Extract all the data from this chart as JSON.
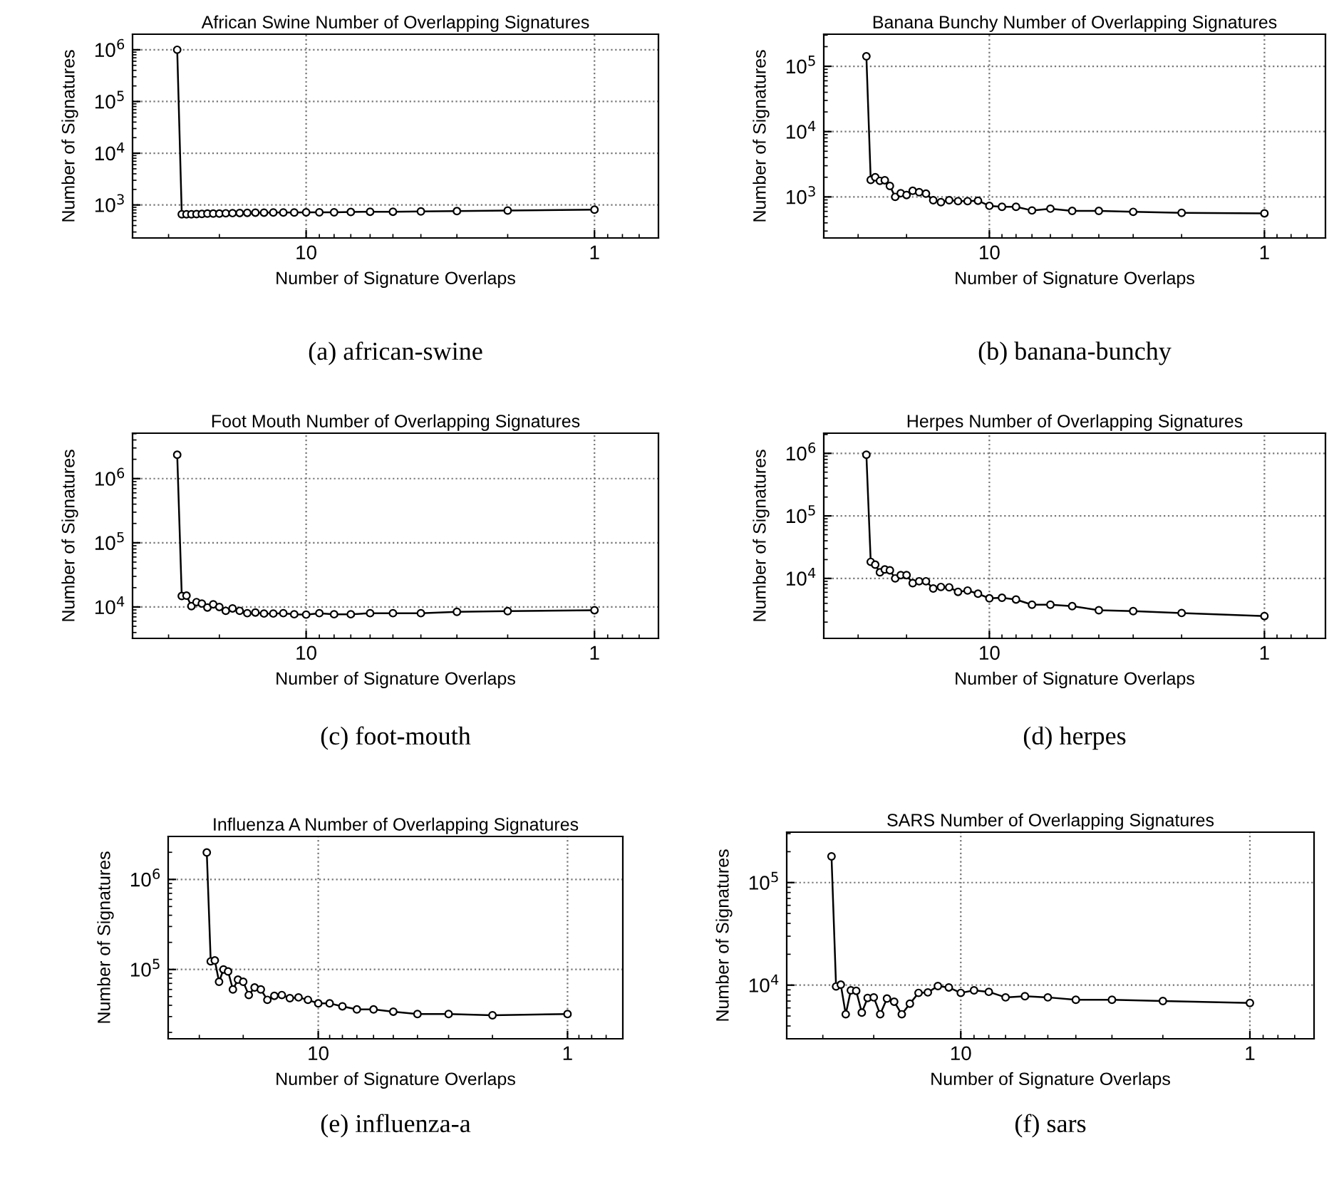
{
  "chart_data": [
    {
      "type": "line",
      "title": "African Swine Number of Overlapping Signatures",
      "xlabel": "Number of Signature Overlaps",
      "ylabel": "Number of Signatures",
      "annotations": [
        "(a) african-swine"
      ],
      "log": "xy",
      "grid": true,
      "marker": "circle",
      "line_style": "solid",
      "x": [
        28,
        27,
        26,
        25,
        24,
        23,
        22,
        21,
        20,
        19,
        18,
        17,
        16,
        15,
        14,
        13,
        12,
        11,
        10,
        9,
        8,
        7,
        6,
        5,
        4,
        3,
        2,
        1
      ],
      "xlim": [
        40,
        0.6
      ],
      "xticks": [
        10,
        1
      ],
      "ylim": [
        230,
        2000000
      ],
      "yticks": [
        {
          "value": 1000,
          "label": "10$^{3}$"
        },
        {
          "value": 10000,
          "label": "10$^{4}$"
        },
        {
          "value": 100000,
          "label": "10$^{5}$"
        },
        {
          "value": 1000000,
          "label": "10$^{6}$"
        }
      ],
      "series": [
        {
          "color": "#000000",
          "values": [
            1000000,
            660,
            660,
            660,
            665,
            670,
            680,
            680,
            680,
            690,
            695,
            700,
            705,
            710,
            710,
            715,
            715,
            715,
            720,
            720,
            720,
            730,
            740,
            740,
            750,
            760,
            780,
            810
          ]
        }
      ]
    },
    {
      "type": "line",
      "title": "Banana Bunchy Number of Overlapping Signatures",
      "xlabel": "Number of Signature Overlaps",
      "ylabel": "Number of Signatures",
      "annotations": [
        "(b) banana-bunchy"
      ],
      "log": "xy",
      "grid": true,
      "marker": "circle",
      "line_style": "solid",
      "x": [
        28,
        27,
        26,
        25,
        24,
        23,
        22,
        21,
        20,
        19,
        18,
        17,
        16,
        15,
        14,
        13,
        12,
        11,
        10,
        9,
        8,
        7,
        6,
        5,
        4,
        3,
        2,
        1
      ],
      "xlim": [
        40,
        0.6
      ],
      "xticks": [
        10,
        1
      ],
      "ylim": [
        235,
        310000
      ],
      "yticks": [
        {
          "value": 1000,
          "label": "10$^{3}$"
        },
        {
          "value": 10000,
          "label": "10$^{4}$"
        },
        {
          "value": 100000,
          "label": "10$^{5}$"
        }
      ],
      "series": [
        {
          "color": "#000000",
          "values": [
            142000,
            1820,
            2000,
            1760,
            1800,
            1470,
            1000,
            1140,
            1070,
            1240,
            1180,
            1120,
            890,
            830,
            890,
            860,
            860,
            875,
            730,
            705,
            705,
            620,
            660,
            610,
            610,
            590,
            570,
            560
          ]
        }
      ]
    },
    {
      "type": "line",
      "title": "Foot Mouth Number of Overlapping Signatures",
      "xlabel": "Number of Signature Overlaps",
      "ylabel": "Number of Signatures",
      "annotations": [
        "(c) foot-mouth"
      ],
      "log": "xy",
      "grid": true,
      "marker": "circle",
      "line_style": "solid",
      "x": [
        28,
        27,
        26,
        25,
        24,
        23,
        22,
        21,
        20,
        19,
        18,
        17,
        16,
        15,
        14,
        13,
        12,
        11,
        10,
        9,
        8,
        7,
        6,
        5,
        4,
        3,
        2,
        1
      ],
      "xlim": [
        40,
        0.6
      ],
      "xticks": [
        10,
        1
      ],
      "ylim": [
        3240,
        5100000
      ],
      "yticks": [
        {
          "value": 10000,
          "label": "10$^{4}$"
        },
        {
          "value": 100000,
          "label": "10$^{5}$"
        },
        {
          "value": 1000000,
          "label": "10$^{6}$"
        }
      ],
      "series": [
        {
          "color": "#000000",
          "values": [
            2350000,
            14800,
            15000,
            10300,
            11900,
            11300,
            9800,
            11000,
            10000,
            8700,
            9500,
            8700,
            8000,
            8200,
            7900,
            7900,
            8000,
            7700,
            7600,
            8000,
            7700,
            7700,
            8000,
            8000,
            8000,
            8400,
            8600,
            8900
          ]
        }
      ]
    },
    {
      "type": "line",
      "title": "Herpes Number of Overlapping Signatures",
      "xlabel": "Number of Signature Overlaps",
      "ylabel": "Number of Signatures",
      "annotations": [
        "(d) herpes"
      ],
      "log": "xy",
      "grid": true,
      "marker": "circle",
      "line_style": "solid",
      "x": [
        28,
        27,
        26,
        25,
        24,
        23,
        22,
        21,
        20,
        19,
        18,
        17,
        16,
        15,
        14,
        13,
        12,
        11,
        10,
        9,
        8,
        7,
        6,
        5,
        4,
        3,
        2,
        1
      ],
      "xlim": [
        40,
        0.6
      ],
      "xticks": [
        10,
        1
      ],
      "ylim": [
        1100,
        2100000
      ],
      "yticks": [
        {
          "value": 10000,
          "label": "10$^{4}$"
        },
        {
          "value": 100000,
          "label": "10$^{5}$"
        },
        {
          "value": 1000000,
          "label": "10$^{6}$"
        }
      ],
      "series": [
        {
          "color": "#000000",
          "values": [
            950000,
            18400,
            16600,
            12500,
            13900,
            13500,
            10000,
            11300,
            11300,
            8400,
            9000,
            9000,
            6900,
            7300,
            7200,
            6100,
            6400,
            5700,
            4800,
            4900,
            4600,
            3800,
            3800,
            3600,
            3100,
            3000,
            2800,
            2500
          ]
        }
      ]
    },
    {
      "type": "line",
      "title": "Influenza A Number of Overlapping Signatures",
      "xlabel": "Number of Signature Overlaps",
      "ylabel": "Number of Signatures",
      "annotations": [
        "(e) influenza-a"
      ],
      "log": "xy",
      "grid": true,
      "marker": "circle",
      "line_style": "solid",
      "x": [
        28,
        27,
        26,
        25,
        24,
        23,
        22,
        21,
        20,
        19,
        18,
        17,
        16,
        15,
        14,
        13,
        12,
        11,
        10,
        9,
        8,
        7,
        6,
        5,
        4,
        3,
        2,
        1
      ],
      "xlim": [
        40,
        0.6
      ],
      "xticks": [
        10,
        1
      ],
      "ylim": [
        17000,
        3000000
      ],
      "yticks": [
        {
          "value": 100000,
          "label": "10$^{5}$"
        },
        {
          "value": 1000000,
          "label": "10$^{6}$"
        }
      ],
      "series": [
        {
          "color": "#000000",
          "values": [
            1990000,
            123000,
            126000,
            73000,
            100000,
            95000,
            60000,
            77000,
            73000,
            52000,
            63000,
            60000,
            46000,
            51000,
            52000,
            48000,
            49000,
            46000,
            42000,
            42000,
            39000,
            36000,
            36000,
            34000,
            32000,
            32000,
            31000,
            32000
          ]
        }
      ]
    },
    {
      "type": "line",
      "title": "SARS Number of Overlapping Signatures",
      "xlabel": "Number of Signature Overlaps",
      "ylabel": "Number of Signatures",
      "annotations": [
        "(f) sars"
      ],
      "log": "xy",
      "grid": true,
      "marker": "circle",
      "line_style": "solid",
      "x": [
        28,
        27,
        26,
        25,
        24,
        23,
        22,
        21,
        20,
        19,
        18,
        17,
        16,
        15,
        14,
        13,
        12,
        11,
        10,
        9,
        8,
        7,
        6,
        5,
        4,
        3,
        2,
        1
      ],
      "xlim": [
        40,
        0.6
      ],
      "xticks": [
        10,
        1
      ],
      "ylim": [
        3000,
        310000
      ],
      "yticks": [
        {
          "value": 10000,
          "label": "10$^{4}$"
        },
        {
          "value": 100000,
          "label": "10$^{5}$"
        }
      ],
      "series": [
        {
          "color": "#000000",
          "values": [
            180000,
            9700,
            10100,
            5200,
            8900,
            8800,
            5400,
            7500,
            7600,
            5200,
            7400,
            6900,
            5200,
            6600,
            8400,
            8500,
            9800,
            9500,
            8400,
            8900,
            8600,
            7600,
            7800,
            7600,
            7200,
            7200,
            7000,
            6700
          ]
        }
      ]
    }
  ]
}
